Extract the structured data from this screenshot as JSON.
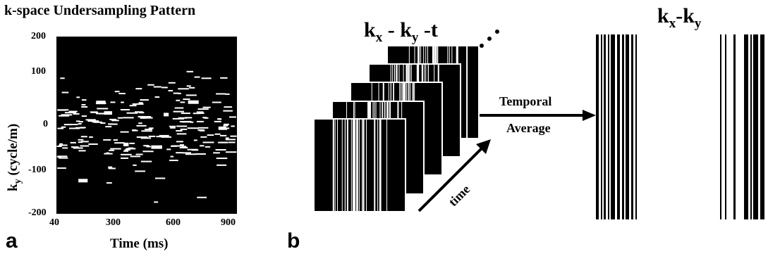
{
  "panel_a": {
    "title": "k-space Undersampling Pattern",
    "ylabel_main": "k",
    "ylabel_sub": "y",
    "ylabel_rest": " (cycle/m)",
    "xlabel": "Time (ms)",
    "y_ticks": [
      "200",
      "100",
      "0",
      "-100",
      "-200"
    ],
    "x_ticks": [
      "40",
      "300",
      "600",
      "900"
    ],
    "letter": "a"
  },
  "panel_b": {
    "letter": "b",
    "stack_title": {
      "k": "k",
      "sub_x": "x",
      "dash1": " - ",
      "k2": "k",
      "sub_y": "y",
      "rest": " -t"
    },
    "dots": "...",
    "arrow_label_line1": "Temporal",
    "arrow_label_line2": "Average",
    "time_label": "time",
    "result_title": {
      "k": "k",
      "sub_x": "x",
      "dash": "-",
      "k2": "k",
      "sub_y": "y"
    }
  },
  "chart_data": {
    "type": "heatmap",
    "title": "k-space Undersampling Pattern",
    "xlabel": "Time (ms)",
    "ylabel": "ky (cycle/m)",
    "xlim": [
      40,
      900
    ],
    "ylim": [
      -200,
      200
    ],
    "x_ticks": [
      40,
      300,
      600,
      900
    ],
    "y_ticks": [
      200,
      100,
      0,
      -100,
      -200
    ],
    "colors": {
      "background": "#000000",
      "sampled": "#ffffff"
    }
  }
}
